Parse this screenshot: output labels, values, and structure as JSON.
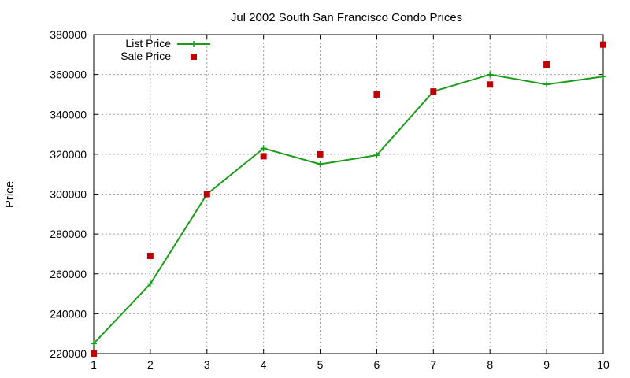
{
  "chart_data": {
    "type": "line",
    "title": "Jul 2002 South San Francisco Condo Prices",
    "xlabel": "",
    "ylabel": "Price",
    "xlim": [
      1,
      10
    ],
    "ylim": [
      220000,
      380000
    ],
    "xticks": [
      1,
      2,
      3,
      4,
      5,
      6,
      7,
      8,
      9,
      10
    ],
    "yticks": [
      220000,
      240000,
      260000,
      280000,
      300000,
      320000,
      340000,
      360000,
      380000
    ],
    "grid": true,
    "legend_position": "top-left",
    "series": [
      {
        "name": "List Price",
        "style": "line-with-plus-markers",
        "color": "#1a9c1a",
        "x": [
          1,
          2,
          3,
          4,
          5,
          6,
          7,
          8,
          9,
          10
        ],
        "values": [
          225000,
          255000,
          300000,
          323000,
          315000,
          319500,
          351500,
          360000,
          355000,
          359000
        ]
      },
      {
        "name": "Sale Price",
        "style": "square-markers",
        "color": "#c00000",
        "x": [
          1,
          2,
          3,
          4,
          5,
          6,
          7,
          8,
          9,
          10
        ],
        "values": [
          220000,
          269000,
          300000,
          319000,
          320000,
          350000,
          351500,
          355000,
          365000,
          375000
        ]
      }
    ]
  }
}
